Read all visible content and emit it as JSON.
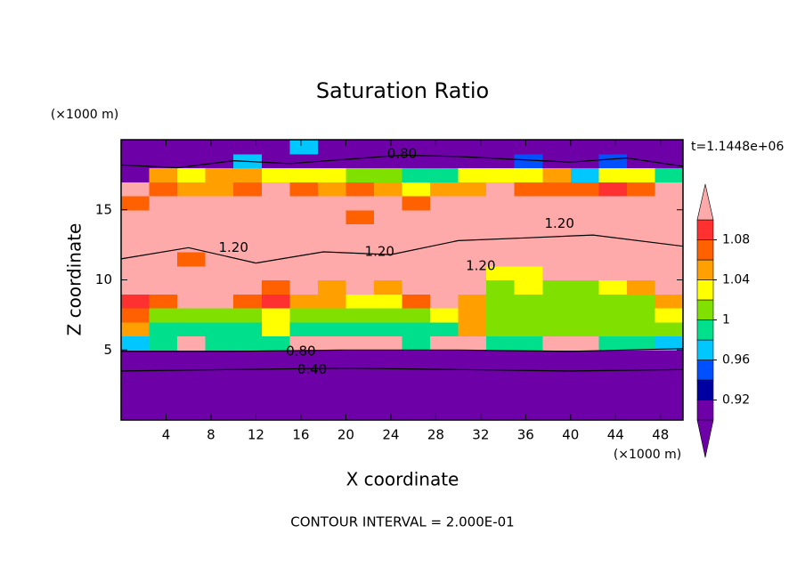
{
  "chart_data": {
    "type": "contour",
    "title": "Saturation Ratio",
    "xlabel": "X coordinate",
    "ylabel": "Z coordinate",
    "xunit": "(×1000 m)",
    "yunit": "(×1000 m)",
    "time_label": "t=1.1448e+06",
    "footer": "CONTOUR INTERVAL = 2.000E-01",
    "xlim": [
      0,
      50
    ],
    "ylim": [
      0,
      20
    ],
    "xticks": [
      4,
      8,
      12,
      16,
      20,
      24,
      28,
      32,
      36,
      40,
      44,
      48
    ],
    "yticks": [
      5,
      10,
      15
    ],
    "colorbar": {
      "levels": [
        0.9,
        0.92,
        0.94,
        0.96,
        0.98,
        1.0,
        1.02,
        1.04,
        1.06,
        1.08,
        1.1
      ],
      "ticks": [
        0.92,
        0.96,
        1,
        1.04,
        1.08
      ],
      "colors": [
        "#6e00a8",
        "#6e00a8",
        "#0000a0",
        "#0050ff",
        "#00c8ff",
        "#00e08c",
        "#80e000",
        "#ffff00",
        "#ffa000",
        "#ff6000",
        "#ff3030",
        "#ffaaaa"
      ]
    },
    "z": [
      [
        0.3,
        0.3,
        0.3,
        0.3,
        0.3,
        0.3,
        0.3,
        0.3,
        0.3,
        0.3,
        0.3,
        0.3,
        0.3,
        0.3,
        0.3,
        0.3,
        0.3,
        0.3,
        0.3,
        0.3
      ],
      [
        0.35,
        0.35,
        0.35,
        0.35,
        0.35,
        0.35,
        0.35,
        0.35,
        0.35,
        0.35,
        0.35,
        0.35,
        0.35,
        0.35,
        0.35,
        0.35,
        0.35,
        0.35,
        0.35,
        0.35
      ],
      [
        0.45,
        0.45,
        0.45,
        0.45,
        0.45,
        0.45,
        0.45,
        0.45,
        0.45,
        0.45,
        0.45,
        0.45,
        0.45,
        0.45,
        0.45,
        0.45,
        0.45,
        0.45,
        0.45,
        0.45
      ],
      [
        0.55,
        0.55,
        0.55,
        0.55,
        0.55,
        0.55,
        0.55,
        0.55,
        0.55,
        0.55,
        0.55,
        0.55,
        0.55,
        0.55,
        0.55,
        0.55,
        0.55,
        0.55,
        0.55,
        0.55
      ],
      [
        0.8,
        0.8,
        0.8,
        0.8,
        0.8,
        0.8,
        0.8,
        0.8,
        0.8,
        0.8,
        0.8,
        0.8,
        0.8,
        0.8,
        0.8,
        0.8,
        0.8,
        0.8,
        0.8,
        0.8
      ],
      [
        0.97,
        0.99,
        1.2,
        0.99,
        0.99,
        0.99,
        1.2,
        1.2,
        1.2,
        1.2,
        0.99,
        1.2,
        1.2,
        0.99,
        0.99,
        1.2,
        1.2,
        0.99,
        0.99,
        0.97
      ],
      [
        1.05,
        0.99,
        0.99,
        0.99,
        0.99,
        1.03,
        0.99,
        0.99,
        0.99,
        0.99,
        0.99,
        0.99,
        1.04,
        1.0,
        1.0,
        1.0,
        1.0,
        1.0,
        1.0,
        1.0
      ],
      [
        1.06,
        1.01,
        1.01,
        1.01,
        1.0,
        1.03,
        1.01,
        1.0,
        1.0,
        1.01,
        1.0,
        1.02,
        1.04,
        1.0,
        1.01,
        1.0,
        1.0,
        1.01,
        1.0,
        1.02
      ],
      [
        1.08,
        1.06,
        1.1,
        1.12,
        1.07,
        1.08,
        1.05,
        1.04,
        1.03,
        1.03,
        1.06,
        1.2,
        1.05,
        1.01,
        1.01,
        1.01,
        1.01,
        1.0,
        1.01,
        1.05
      ],
      [
        1.2,
        1.1,
        1.2,
        1.2,
        1.2,
        1.06,
        1.2,
        1.05,
        1.2,
        1.04,
        1.2,
        1.2,
        1.2,
        1.01,
        1.02,
        1.01,
        1.01,
        1.03,
        1.04,
        1.2
      ],
      [
        1.2,
        1.2,
        1.2,
        1.2,
        1.2,
        1.2,
        1.2,
        1.2,
        1.2,
        1.2,
        1.2,
        1.2,
        1.2,
        1.02,
        1.03,
        1.1,
        1.2,
        1.2,
        1.2,
        1.2
      ],
      [
        1.2,
        1.2,
        1.07,
        1.2,
        1.2,
        1.2,
        1.2,
        1.2,
        1.2,
        1.2,
        1.2,
        1.2,
        1.2,
        1.2,
        1.2,
        1.2,
        1.2,
        1.2,
        1.2,
        1.2
      ],
      [
        1.2,
        1.2,
        1.2,
        1.2,
        1.2,
        1.2,
        1.2,
        1.2,
        1.2,
        1.2,
        1.2,
        1.2,
        1.2,
        1.2,
        1.2,
        1.2,
        1.2,
        1.2,
        1.2,
        1.2
      ],
      [
        1.2,
        1.2,
        1.2,
        1.2,
        1.2,
        1.2,
        1.2,
        1.2,
        1.2,
        1.2,
        1.2,
        1.2,
        1.2,
        1.2,
        1.2,
        1.2,
        1.2,
        1.2,
        1.2,
        1.2
      ],
      [
        1.2,
        1.2,
        1.2,
        1.2,
        1.2,
        1.2,
        1.2,
        1.2,
        1.07,
        1.2,
        1.2,
        1.2,
        1.2,
        1.2,
        1.2,
        1.2,
        1.2,
        1.2,
        1.2,
        1.2
      ],
      [
        1.07,
        1.2,
        1.2,
        1.2,
        1.2,
        1.2,
        1.2,
        1.2,
        1.2,
        1.2,
        1.06,
        1.2,
        1.2,
        1.2,
        1.2,
        1.2,
        1.2,
        1.2,
        1.2,
        1.2
      ],
      [
        1.1,
        1.07,
        1.05,
        1.04,
        1.06,
        1.2,
        1.06,
        1.05,
        1.07,
        1.05,
        1.03,
        1.04,
        1.05,
        1.1,
        1.06,
        1.07,
        1.06,
        1.08,
        1.07,
        1.1
      ],
      [
        0.85,
        1.04,
        1.03,
        1.05,
        1.04,
        1.02,
        1.03,
        1.03,
        1.01,
        1.0,
        0.98,
        0.99,
        1.02,
        1.03,
        1.02,
        1.04,
        0.97,
        1.03,
        1.02,
        0.98
      ],
      [
        0.8,
        0.8,
        0.8,
        0.8,
        0.96,
        0.8,
        0.8,
        0.8,
        0.8,
        0.8,
        0.8,
        0.8,
        0.8,
        0.8,
        0.95,
        0.8,
        0.8,
        0.95,
        0.8,
        0.8
      ],
      [
        0.7,
        0.7,
        0.7,
        0.7,
        0.7,
        0.7,
        0.96,
        0.7,
        0.7,
        0.7,
        0.7,
        0.7,
        0.7,
        0.7,
        0.7,
        0.7,
        0.7,
        0.7,
        0.7,
        0.7
      ]
    ],
    "contour_lines": [
      {
        "level": 0.4,
        "x": [
          0,
          10,
          20,
          30,
          40,
          50
        ],
        "y": [
          3.5,
          3.6,
          3.7,
          3.6,
          3.5,
          3.6
        ]
      },
      {
        "level": 0.8,
        "x": [
          0,
          10,
          20,
          30,
          40,
          50
        ],
        "y": [
          4.9,
          4.9,
          5.0,
          5.0,
          4.9,
          5.1
        ]
      },
      {
        "level": 0.8,
        "x": [
          0,
          5,
          10,
          15,
          20,
          25,
          30,
          35,
          40,
          45,
          50
        ],
        "y": [
          18.2,
          18.0,
          18.5,
          18.3,
          18.6,
          18.9,
          18.8,
          18.6,
          18.4,
          18.7,
          18.1
        ]
      },
      {
        "level": 1.2,
        "x": [
          0,
          6,
          12,
          18,
          24,
          30,
          36,
          42,
          50
        ],
        "y": [
          11.5,
          12.3,
          11.2,
          12.0,
          11.8,
          12.8,
          13.0,
          13.2,
          12.4
        ]
      }
    ],
    "contour_labels": [
      {
        "value": 0.8,
        "label": "0.80",
        "x": 25,
        "y": 19.0
      },
      {
        "value": 1.2,
        "label": "1.20",
        "x": 10,
        "y": 12.3
      },
      {
        "value": 1.2,
        "label": "1.20",
        "x": 23,
        "y": 12.0
      },
      {
        "value": 1.2,
        "label": "1.20",
        "x": 39,
        "y": 14.0
      },
      {
        "value": 1.2,
        "label": "1.20",
        "x": 32,
        "y": 11.0
      },
      {
        "value": 0.8,
        "label": "0.80",
        "x": 16,
        "y": 4.9
      },
      {
        "value": 0.4,
        "label": "0.40",
        "x": 17,
        "y": 3.6
      }
    ]
  }
}
